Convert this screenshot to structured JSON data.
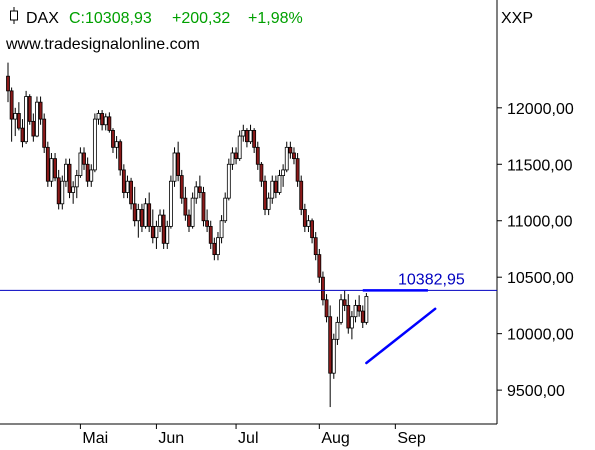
{
  "header": {
    "symbol": "DAX",
    "close_label": "C:10308,93",
    "change": "+200,32",
    "change_pct": "+1,98%",
    "exchange": "XXP",
    "website": "www.tradesignalonline.com",
    "icon": "candlestick-icon"
  },
  "colors": {
    "up_candle": "#ffffff",
    "down_candle": "#8b1a1a",
    "wick": "#000000",
    "change_text": "#00a000",
    "resistance_line": "#0000c0",
    "trend_line": "#0000ff",
    "label_blue": "#0000c0"
  },
  "chart_data": {
    "type": "candlestick",
    "y_ticks": [
      "12000,00",
      "11500,00",
      "11000,00",
      "10500,00",
      "10000,00",
      "9500,00"
    ],
    "y_tick_values": [
      12000,
      11500,
      11000,
      10500,
      10000,
      9500
    ],
    "ylim": [
      9200,
      12450
    ],
    "x_months": [
      {
        "label": "Mai",
        "index": 20
      },
      {
        "label": "Jun",
        "index": 41
      },
      {
        "label": "Jul",
        "index": 63
      },
      {
        "label": "Aug",
        "index": 86
      },
      {
        "label": "Sep",
        "index": 107
      }
    ],
    "resistance": {
      "value": 10382.95,
      "label": "10382,95"
    },
    "trendline": {
      "from": {
        "index": 99,
        "value": 9740
      },
      "to": {
        "index": 118,
        "value": 10220
      }
    },
    "candles": [
      [
        12280,
        12400,
        12050,
        12150
      ],
      [
        12150,
        12180,
        11700,
        11900
      ],
      [
        11900,
        12000,
        11750,
        11950
      ],
      [
        11950,
        12050,
        11800,
        11820
      ],
      [
        11820,
        11900,
        11650,
        11700
      ],
      [
        11700,
        12150,
        11680,
        12100
      ],
      [
        12100,
        12120,
        11850,
        11880
      ],
      [
        11880,
        11950,
        11700,
        11750
      ],
      [
        11750,
        12100,
        11740,
        12050
      ],
      [
        12050,
        12100,
        11850,
        11900
      ],
      [
        11900,
        11950,
        11600,
        11650
      ],
      [
        11650,
        11700,
        11300,
        11350
      ],
      [
        11350,
        11600,
        11300,
        11550
      ],
      [
        11550,
        11600,
        11350,
        11380
      ],
      [
        11380,
        11450,
        11100,
        11150
      ],
      [
        11150,
        11400,
        11100,
        11350
      ],
      [
        11350,
        11550,
        11300,
        11500
      ],
      [
        11500,
        11550,
        11200,
        11250
      ],
      [
        11250,
        11350,
        11150,
        11300
      ],
      [
        11300,
        11450,
        11200,
        11400
      ],
      [
        11400,
        11650,
        11380,
        11600
      ],
      [
        11600,
        11650,
        11450,
        11500
      ],
      [
        11500,
        11560,
        11300,
        11350
      ],
      [
        11350,
        11500,
        11300,
        11450
      ],
      [
        11450,
        11950,
        11430,
        11900
      ],
      [
        11900,
        11980,
        11850,
        11950
      ],
      [
        11950,
        11980,
        11800,
        11850
      ],
      [
        11850,
        11950,
        11800,
        11920
      ],
      [
        11920,
        11960,
        11780,
        11800
      ],
      [
        11800,
        11820,
        11600,
        11650
      ],
      [
        11650,
        11750,
        11550,
        11700
      ],
      [
        11700,
        11720,
        11400,
        11450
      ],
      [
        11450,
        11500,
        11200,
        11250
      ],
      [
        11250,
        11400,
        11200,
        11350
      ],
      [
        11350,
        11380,
        11100,
        11150
      ],
      [
        11150,
        11300,
        10950,
        11000
      ],
      [
        11000,
        11150,
        10850,
        11100
      ],
      [
        11100,
        11150,
        10900,
        10950
      ],
      [
        10950,
        11200,
        10930,
        11150
      ],
      [
        11150,
        11250,
        10900,
        10950
      ],
      [
        10950,
        11100,
        10800,
        10850
      ],
      [
        10850,
        11000,
        10750,
        10950
      ],
      [
        10950,
        11100,
        10900,
        11050
      ],
      [
        11050,
        11100,
        10750,
        10800
      ],
      [
        10800,
        11000,
        10750,
        10950
      ],
      [
        10950,
        11400,
        10930,
        11350
      ],
      [
        11350,
        11650,
        11300,
        11600
      ],
      [
        11600,
        11700,
        11350,
        11400
      ],
      [
        11400,
        11450,
        11150,
        11200
      ],
      [
        11200,
        11300,
        11000,
        11050
      ],
      [
        11050,
        11100,
        10900,
        10950
      ],
      [
        10950,
        11250,
        10930,
        11200
      ],
      [
        11200,
        11350,
        11150,
        11300
      ],
      [
        11300,
        11400,
        11200,
        11250
      ],
      [
        11250,
        11300,
        10950,
        11000
      ],
      [
        11000,
        11100,
        10900,
        10950
      ],
      [
        10950,
        11000,
        10750,
        10800
      ],
      [
        10800,
        10850,
        10650,
        10700
      ],
      [
        10700,
        10900,
        10650,
        10850
      ],
      [
        10850,
        11050,
        10800,
        11000
      ],
      [
        11000,
        11250,
        10980,
        11200
      ],
      [
        11200,
        11550,
        11180,
        11500
      ],
      [
        11500,
        11650,
        11450,
        11600
      ],
      [
        11600,
        11650,
        11500,
        11550
      ],
      [
        11550,
        11800,
        11530,
        11750
      ],
      [
        11750,
        11850,
        11700,
        11800
      ],
      [
        11800,
        11820,
        11650,
        11700
      ],
      [
        11700,
        11850,
        11680,
        11800
      ],
      [
        11800,
        11820,
        11600,
        11650
      ],
      [
        11650,
        11700,
        11450,
        11500
      ],
      [
        11500,
        11520,
        11300,
        11350
      ],
      [
        11350,
        11400,
        11050,
        11100
      ],
      [
        11100,
        11250,
        11050,
        11200
      ],
      [
        11200,
        11400,
        11150,
        11350
      ],
      [
        11350,
        11400,
        11200,
        11250
      ],
      [
        11250,
        11450,
        11230,
        11400
      ],
      [
        11400,
        11500,
        11300,
        11450
      ],
      [
        11450,
        11700,
        11430,
        11650
      ],
      [
        11650,
        11700,
        11550,
        11600
      ],
      [
        11600,
        11650,
        11500,
        11550
      ],
      [
        11550,
        11600,
        11300,
        11350
      ],
      [
        11350,
        11400,
        11050,
        11100
      ],
      [
        11100,
        11150,
        10900,
        10950
      ],
      [
        10950,
        11050,
        10900,
        11000
      ],
      [
        11000,
        11020,
        10800,
        10850
      ],
      [
        10850,
        10900,
        10650,
        10700
      ],
      [
        10700,
        10750,
        10450,
        10500
      ],
      [
        10500,
        10550,
        10250,
        10300
      ],
      [
        10300,
        10350,
        10100,
        10150
      ],
      [
        10150,
        10250,
        9350,
        9650
      ],
      [
        9650,
        10000,
        9600,
        9950
      ],
      [
        9950,
        10150,
        9900,
        10100
      ],
      [
        10100,
        10350,
        10080,
        10300
      ],
      [
        10300,
        10380,
        10200,
        10250
      ],
      [
        10250,
        10350,
        10000,
        10050
      ],
      [
        10050,
        10200,
        9950,
        10150
      ],
      [
        10150,
        10300,
        10100,
        10250
      ],
      [
        10250,
        10340,
        10150,
        10200
      ],
      [
        10200,
        10250,
        10050,
        10100
      ],
      [
        10100,
        10360,
        10080,
        10330
      ]
    ]
  }
}
